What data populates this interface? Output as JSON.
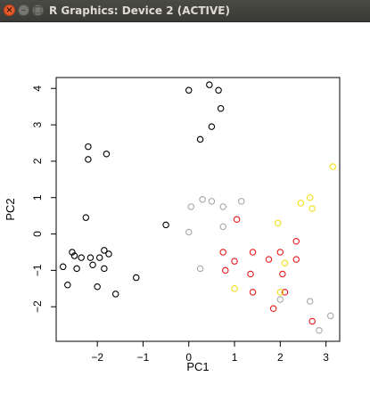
{
  "window": {
    "title": "R Graphics: Device 2 (ACTIVE)",
    "close_symbol": "×",
    "minimize_symbol": "–",
    "maximize_symbol": "□",
    "close_icon": "close-icon",
    "minimize_icon": "minimize-icon",
    "maximize_icon": "maximize-icon",
    "close_color": "#e65a2a"
  },
  "chart_data": {
    "type": "scatter",
    "xlabel": "PC1",
    "ylabel": "PC2",
    "xlim": [
      -2.9,
      3.3
    ],
    "ylim": [
      -2.95,
      4.3
    ],
    "x_ticks": [
      -2,
      -1,
      0,
      1,
      2,
      3
    ],
    "y_ticks": [
      -2,
      -1,
      0,
      1,
      2,
      3,
      4
    ],
    "grid": false,
    "legend": null,
    "marker": "open-circle",
    "point_color_names": {
      "black": "#000000",
      "gray": "#a8a8a8",
      "red": "#e8191f",
      "yellow": "#f1e01a"
    },
    "series": [
      {
        "color": "black",
        "points": [
          [
            -2.2,
            2.4
          ],
          [
            -2.2,
            2.05
          ],
          [
            -1.8,
            2.2
          ],
          [
            -2.25,
            0.45
          ],
          [
            -2.55,
            -0.5
          ],
          [
            -2.5,
            -0.6
          ],
          [
            -2.35,
            -0.65
          ],
          [
            -2.15,
            -0.65
          ],
          [
            -1.95,
            -0.65
          ],
          [
            -1.85,
            -0.45
          ],
          [
            -1.75,
            -0.55
          ],
          [
            -2.75,
            -0.9
          ],
          [
            -2.45,
            -0.95
          ],
          [
            -2.1,
            -0.85
          ],
          [
            -1.85,
            -0.95
          ],
          [
            -2.65,
            -1.4
          ],
          [
            -2.0,
            -1.45
          ],
          [
            -1.6,
            -1.65
          ],
          [
            -1.15,
            -1.2
          ],
          [
            -0.5,
            0.25
          ],
          [
            0.0,
            3.95
          ],
          [
            0.45,
            4.1
          ],
          [
            0.65,
            3.95
          ],
          [
            0.7,
            3.45
          ],
          [
            0.5,
            2.95
          ],
          [
            0.25,
            2.6
          ]
        ]
      },
      {
        "color": "gray",
        "points": [
          [
            0.05,
            0.75
          ],
          [
            0.3,
            0.95
          ],
          [
            0.5,
            0.9
          ],
          [
            0.75,
            0.75
          ],
          [
            1.15,
            0.9
          ],
          [
            0.75,
            0.2
          ],
          [
            0.0,
            0.05
          ],
          [
            0.25,
            -0.95
          ],
          [
            2.65,
            -1.85
          ],
          [
            3.1,
            -2.25
          ],
          [
            2.85,
            -2.65
          ],
          [
            2.0,
            -1.8
          ]
        ]
      },
      {
        "color": "red",
        "points": [
          [
            1.05,
            0.4
          ],
          [
            0.75,
            -0.5
          ],
          [
            1.0,
            -0.75
          ],
          [
            0.8,
            -1.0
          ],
          [
            1.4,
            -0.5
          ],
          [
            1.75,
            -0.7
          ],
          [
            1.35,
            -1.1
          ],
          [
            2.0,
            -0.5
          ],
          [
            2.35,
            -0.2
          ],
          [
            2.35,
            -0.7
          ],
          [
            2.05,
            -1.1
          ],
          [
            2.1,
            -1.6
          ],
          [
            1.4,
            -1.6
          ],
          [
            1.85,
            -2.05
          ],
          [
            2.7,
            -2.4
          ]
        ]
      },
      {
        "color": "yellow",
        "points": [
          [
            3.15,
            1.85
          ],
          [
            2.65,
            1.0
          ],
          [
            2.45,
            0.85
          ],
          [
            2.7,
            0.7
          ],
          [
            1.95,
            0.3
          ],
          [
            2.1,
            -0.8
          ],
          [
            1.0,
            -1.5
          ],
          [
            2.0,
            -1.6
          ]
        ]
      }
    ]
  }
}
